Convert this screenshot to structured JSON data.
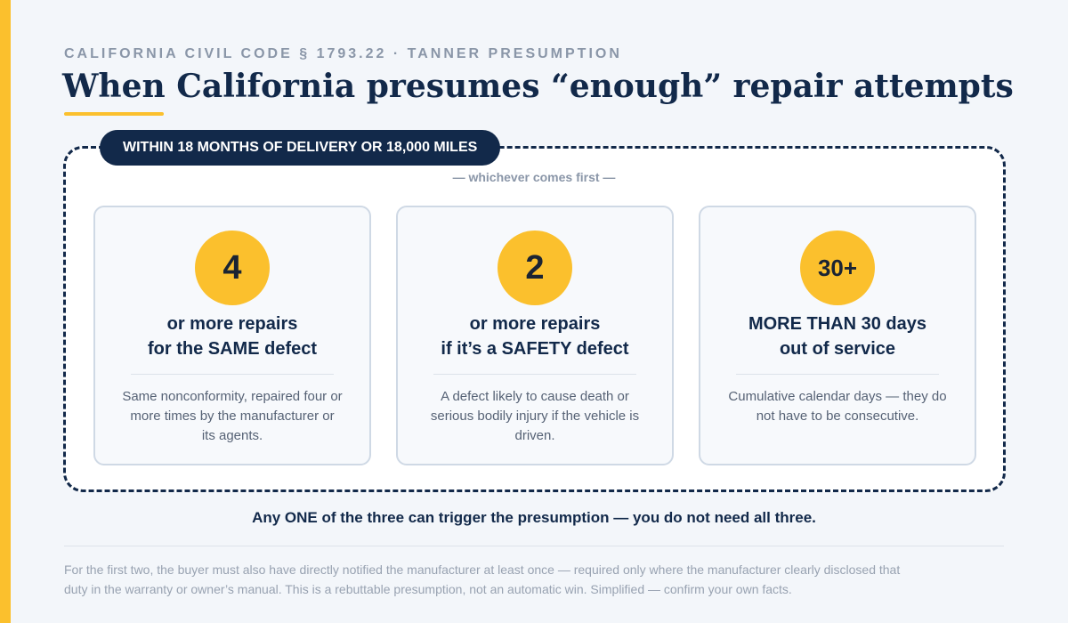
{
  "header": {
    "eyebrow": "CALIFORNIA CIVIL CODE § 1793.22 · TANNER PRESUMPTION",
    "title": "When California presumes “enough” repair attempts"
  },
  "window": {
    "pill": "WITHIN 18 MONTHS OF DELIVERY OR 18,000 MILES",
    "subnote": "— whichever comes first —"
  },
  "cards": [
    {
      "number": "4",
      "head_line1": "or more repairs",
      "head_line2": "for the SAME defect",
      "body": "Same nonconformity, repaired four or more times by the manufacturer or its agents."
    },
    {
      "number": "2",
      "head_line1": "or more repairs",
      "head_line2": "if it’s a SAFETY defect",
      "body": "A defect likely to cause death or serious bodily injury if the vehicle is driven."
    },
    {
      "number": "30+",
      "head_line1": "MORE THAN 30 days",
      "head_line2": "out of service",
      "body": "Cumulative calendar days — they do not have to be consecutive."
    }
  ],
  "trigger": "Any ONE of the three can trigger the presumption — you do not need all three.",
  "footnote": "For the first two, the buyer must also have directly notified the manufacturer at least once — required only where the manufacturer clearly disclosed that duty in the warranty or owner’s manual. This is a rebuttable presumption, not an automatic win. Simplified — confirm your own facts.",
  "colors": {
    "accent": "#fbc02d",
    "navy": "#12294a",
    "background": "#f3f6fa"
  }
}
